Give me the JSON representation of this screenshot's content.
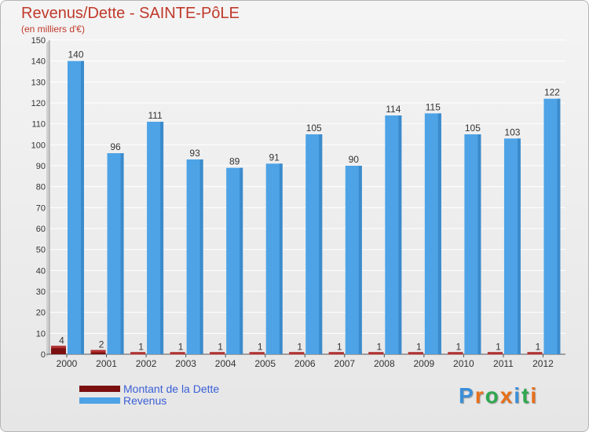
{
  "chart_data": {
    "type": "bar",
    "title": "Revenus/Dette - SAINTE-PôLE",
    "subtitle": "(en milliers d'€)",
    "categories": [
      "2000",
      "2001",
      "2002",
      "2003",
      "2004",
      "2005",
      "2006",
      "2007",
      "2008",
      "2009",
      "2010",
      "2011",
      "2012"
    ],
    "series": [
      {
        "name": "Montant de la Dette",
        "color": "#7b1010",
        "values": [
          4,
          2,
          1,
          1,
          1,
          1,
          1,
          1,
          1,
          1,
          1,
          1,
          1
        ]
      },
      {
        "name": "Revenus",
        "color": "#4da3e6",
        "values": [
          140,
          96,
          111,
          93,
          89,
          91,
          105,
          90,
          114,
          115,
          105,
          103,
          122
        ]
      }
    ],
    "ylim": [
      0,
      150
    ],
    "yticks": [
      0,
      10,
      20,
      30,
      40,
      50,
      60,
      70,
      80,
      90,
      100,
      110,
      120,
      130,
      140,
      150
    ],
    "grid": true,
    "legend_position": "bottom-left"
  },
  "logo": {
    "text": "Proxiti",
    "letters": [
      "P",
      "r",
      "o",
      "x",
      "i",
      "t",
      "i"
    ],
    "colors": [
      "#3a8fd9",
      "#e8701a",
      "#2fa84f",
      "#e8701a",
      "#3a8fd9",
      "#2fa84f",
      "#e8701a"
    ]
  }
}
